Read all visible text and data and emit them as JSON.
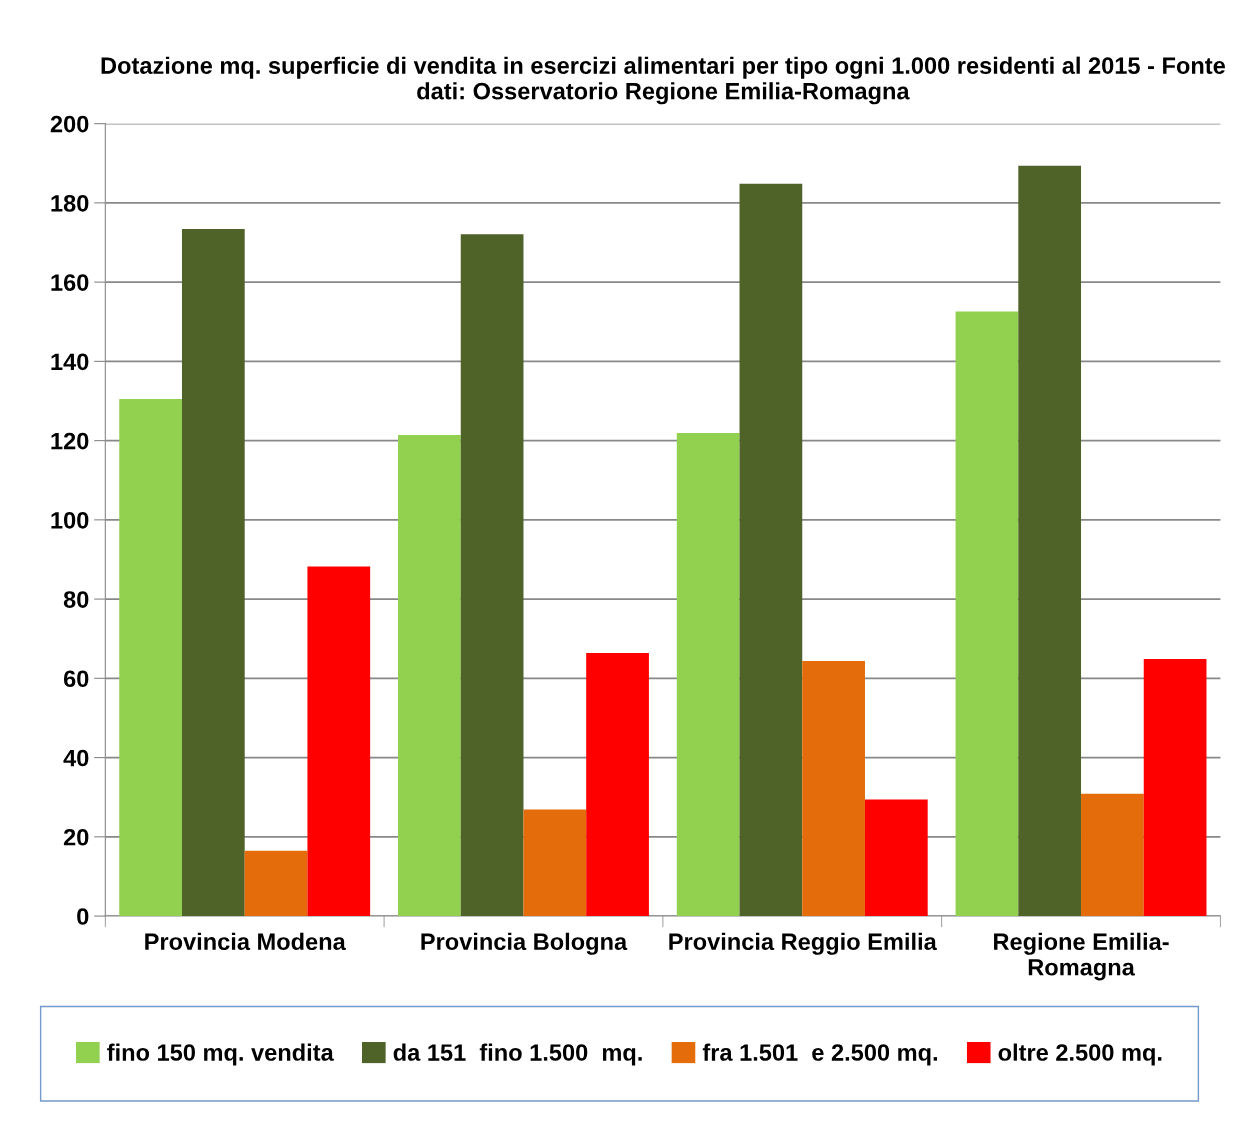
{
  "chart_data": {
    "type": "bar",
    "title": "Dotazione mq. superficie di vendita in esercizi alimentari per tipo ogni 1.000 residenti al 2015 - Fonte dati: Osservatorio Regione Emilia-Romagna",
    "categories": [
      "Provincia Modena",
      "Provincia Bologna",
      "Provincia Reggio Emilia",
      "Regione Emilia-\nRomagna"
    ],
    "series": [
      {
        "name": "fino 150 mq. vendita",
        "color": "#92d050",
        "values": [
          130.5,
          121.4,
          121.9,
          152.6
        ]
      },
      {
        "name": "da 151  fino 1.500  mq.",
        "color": "#4f6228",
        "values": [
          173.4,
          172.1,
          184.8,
          189.4
        ]
      },
      {
        "name": "fra 1.501  e 2.500 mq.",
        "color": "#e46c0a",
        "values": [
          16.5,
          26.9,
          64.4,
          30.9
        ]
      },
      {
        "name": "oltre 2.500 mq.",
        "color": "#ff0000",
        "values": [
          88.2,
          66.4,
          29.4,
          64.9
        ]
      }
    ],
    "ylim": [
      0,
      200
    ],
    "yticks": [
      0,
      20,
      40,
      60,
      80,
      100,
      120,
      140,
      160,
      180,
      200
    ],
    "grid": "y",
    "legend": "bottom"
  }
}
